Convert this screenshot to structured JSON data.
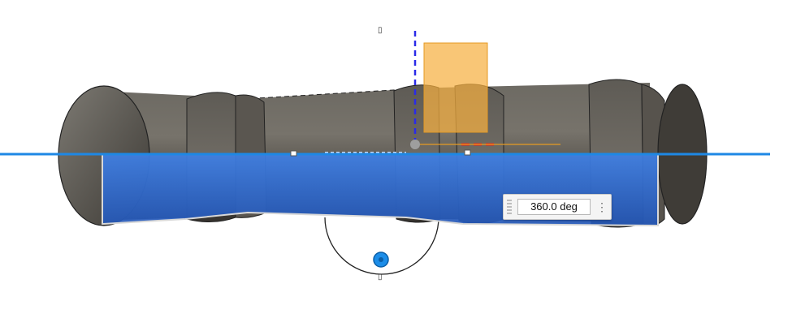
{
  "viewport": {
    "angle_input": {
      "value": "360.0 deg"
    },
    "angle_menu_icon": "more-vertical-icon",
    "top_marker_glyph": "▯",
    "bottom_marker_glyph": "▯",
    "colors": {
      "body_dark": "#4a4640",
      "body_light": "#7b776f",
      "selection_blue": "#2f6dd3",
      "axis_blue": "#1e88e5",
      "plane_orange": "#f7b041",
      "x_axis_red": "#e0241b",
      "z_axis_blue": "#2b2be8"
    }
  }
}
